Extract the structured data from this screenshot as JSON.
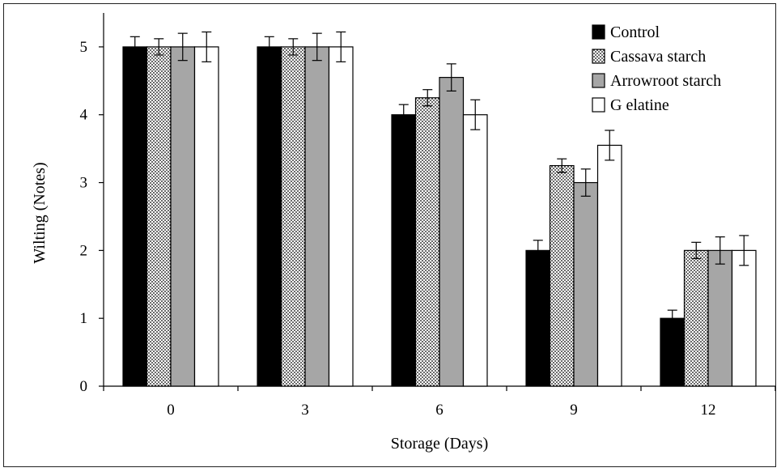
{
  "chart_data": {
    "type": "bar",
    "xlabel": "Storage (Days)",
    "ylabel": "Wilting (Notes)",
    "categories": [
      "0",
      "3",
      "6",
      "9",
      "12"
    ],
    "ylim": [
      0,
      5.5
    ],
    "yticks": [
      "0",
      "1",
      "2",
      "3",
      "4",
      "5"
    ],
    "legend_position": "top-right",
    "series": [
      {
        "name": "Control",
        "fill": "solid",
        "color": "#000000",
        "values": [
          5,
          5,
          4,
          2,
          1
        ],
        "errors": [
          0.15,
          0.15,
          0.15,
          0.15,
          0.12
        ]
      },
      {
        "name": "Cassava starch",
        "fill": "dotted",
        "color": "#ffffff",
        "values": [
          5,
          5,
          4.25,
          3.25,
          2
        ],
        "errors": [
          0.12,
          0.12,
          0.12,
          0.1,
          0.12
        ]
      },
      {
        "name": "Arrowroot starch",
        "fill": "solid",
        "color": "#a6a6a6",
        "values": [
          5,
          5,
          4.55,
          3,
          2
        ],
        "errors": [
          0.2,
          0.2,
          0.2,
          0.2,
          0.2
        ]
      },
      {
        "name": "G elatine",
        "fill": "solid",
        "color": "#ffffff",
        "values": [
          5,
          5,
          4,
          3.55,
          2
        ],
        "errors": [
          0.22,
          0.22,
          0.22,
          0.22,
          0.22
        ]
      }
    ]
  }
}
